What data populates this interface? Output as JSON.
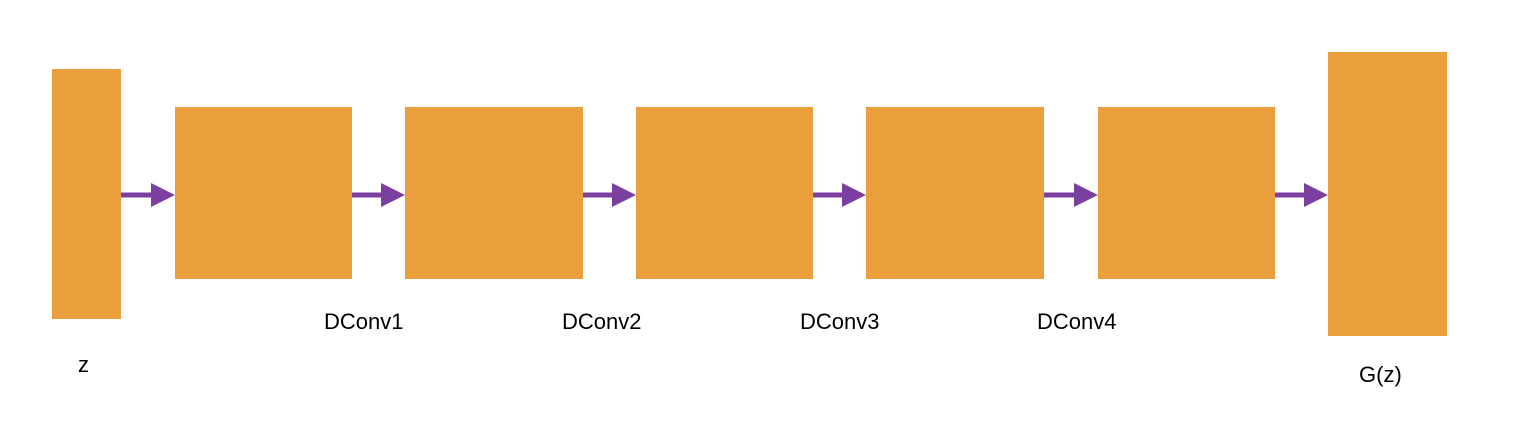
{
  "colors": {
    "block": "#EA9F3C",
    "arrow": "#7B3FA0"
  },
  "input": {
    "label": "z"
  },
  "layers": [
    {
      "label": "DConv1"
    },
    {
      "label": "DConv2"
    },
    {
      "label": "DConv3"
    },
    {
      "label": "DConv4"
    }
  ],
  "output": {
    "label": "G(z)"
  }
}
